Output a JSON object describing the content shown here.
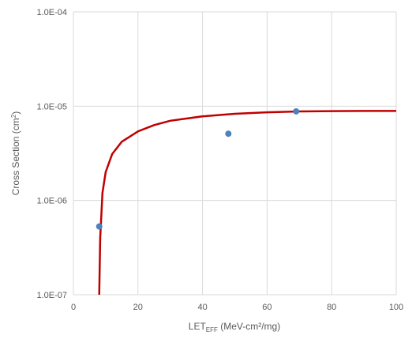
{
  "chart_data": {
    "type": "scatter",
    "xlabel": {
      "main": "LET",
      "sub": "EFF",
      "rest": " (MeV-cm²/mg)"
    },
    "ylabel": {
      "main": "Cross Section (cm",
      "sup": "2",
      "end": ")"
    },
    "xlim": [
      0,
      100
    ],
    "ylim": [
      1e-07,
      0.0001
    ],
    "y_scale": "log",
    "grid": true,
    "x_ticks": [
      0,
      20,
      40,
      60,
      80,
      100
    ],
    "x_tick_labels": [
      "0",
      "20",
      "40",
      "60",
      "80",
      "100"
    ],
    "y_ticks": [
      1e-07,
      1e-06,
      1e-05,
      0.0001
    ],
    "y_tick_labels": [
      "1.0E-07",
      "1.0E-06",
      "1.0E-05",
      "1.0E-04"
    ],
    "series": [
      {
        "type": "scatter",
        "color": "#4f81bd",
        "points": [
          {
            "x": 8,
            "y": 5.3e-07
          },
          {
            "x": 48,
            "y": 5.1e-06
          },
          {
            "x": 69,
            "y": 8.8e-06
          }
        ]
      },
      {
        "type": "line",
        "color": "#c00000",
        "points": [
          {
            "x": 8.0,
            "y": 1e-07
          },
          {
            "x": 8.3,
            "y": 4e-07
          },
          {
            "x": 9,
            "y": 1.2e-06
          },
          {
            "x": 10,
            "y": 2e-06
          },
          {
            "x": 12,
            "y": 3.1e-06
          },
          {
            "x": 15,
            "y": 4.2e-06
          },
          {
            "x": 20,
            "y": 5.4e-06
          },
          {
            "x": 25,
            "y": 6.3e-06
          },
          {
            "x": 30,
            "y": 7e-06
          },
          {
            "x": 40,
            "y": 7.8e-06
          },
          {
            "x": 50,
            "y": 8.3e-06
          },
          {
            "x": 60,
            "y": 8.6e-06
          },
          {
            "x": 70,
            "y": 8.8e-06
          },
          {
            "x": 80,
            "y": 8.85e-06
          },
          {
            "x": 90,
            "y": 8.9e-06
          },
          {
            "x": 100,
            "y": 8.9e-06
          }
        ]
      }
    ]
  }
}
